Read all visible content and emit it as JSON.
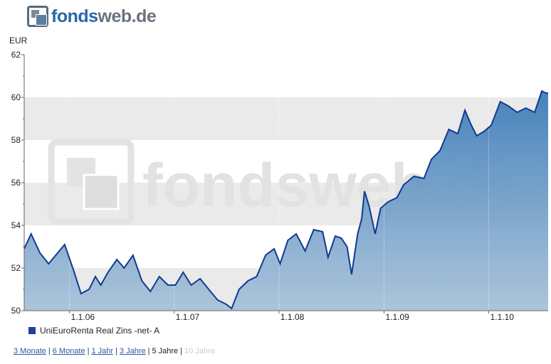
{
  "logo": {
    "part1": "fonds",
    "part2": "web.de"
  },
  "chart_data": {
    "type": "area",
    "unit_label": "EUR",
    "ylim": [
      50,
      62
    ],
    "yticks": [
      50,
      52,
      54,
      56,
      58,
      60,
      62
    ],
    "x_start": "2005-07-27",
    "x_end": "2010-07-27",
    "x_tick_labels": [
      "1.1.06",
      "1.1.07",
      "1.1.08",
      "1.1.09",
      "1.1.10"
    ],
    "x_tick_dates": [
      "2006-01-01",
      "2007-01-01",
      "2008-01-01",
      "2009-01-01",
      "2010-01-01"
    ],
    "watermark": "fondsweb.de",
    "series": [
      {
        "name": "UniEuroRenta Real Zins -net- A",
        "color": "#1a3a8f",
        "dates": [
          "2005-07-27",
          "2005-08-20",
          "2005-09-20",
          "2005-10-20",
          "2005-11-20",
          "2005-12-15",
          "2006-01-15",
          "2006-02-10",
          "2006-03-10",
          "2006-04-01",
          "2006-04-20",
          "2006-05-15",
          "2006-06-15",
          "2006-07-10",
          "2006-08-10",
          "2006-09-10",
          "2006-10-10",
          "2006-11-10",
          "2006-12-10",
          "2007-01-05",
          "2007-02-01",
          "2007-03-01",
          "2007-04-01",
          "2007-05-01",
          "2007-06-01",
          "2007-07-01",
          "2007-07-20",
          "2007-08-15",
          "2007-09-15",
          "2007-10-15",
          "2007-11-15",
          "2007-12-15",
          "2008-01-05",
          "2008-02-01",
          "2008-03-01",
          "2008-04-01",
          "2008-05-01",
          "2008-06-01",
          "2008-06-20",
          "2008-07-15",
          "2008-08-05",
          "2008-08-25",
          "2008-09-10",
          "2008-10-01",
          "2008-10-15",
          "2008-10-25",
          "2008-11-10",
          "2008-12-01",
          "2008-12-20",
          "2009-01-15",
          "2009-02-15",
          "2009-03-10",
          "2009-04-15",
          "2009-05-20",
          "2009-06-15",
          "2009-07-15",
          "2009-08-15",
          "2009-09-15",
          "2009-10-10",
          "2009-11-01",
          "2009-11-20",
          "2009-12-15",
          "2010-01-10",
          "2010-02-10",
          "2010-03-10",
          "2010-04-10",
          "2010-05-10",
          "2010-06-10",
          "2010-07-05",
          "2010-07-20",
          "2010-07-27"
        ],
        "values": [
          52.9,
          53.6,
          52.7,
          52.2,
          52.7,
          53.1,
          51.9,
          50.8,
          51.0,
          51.6,
          51.2,
          51.8,
          52.4,
          52.0,
          52.6,
          51.4,
          50.9,
          51.6,
          51.2,
          51.2,
          51.8,
          51.2,
          51.5,
          51.0,
          50.5,
          50.3,
          50.1,
          51.0,
          51.4,
          51.6,
          52.6,
          52.9,
          52.2,
          53.3,
          53.6,
          52.8,
          53.8,
          53.7,
          52.5,
          53.5,
          53.4,
          53.0,
          51.7,
          53.6,
          54.3,
          55.6,
          54.9,
          53.6,
          54.8,
          55.1,
          55.3,
          55.9,
          56.3,
          56.2,
          57.1,
          57.5,
          58.5,
          58.3,
          59.4,
          58.7,
          58.2,
          58.4,
          58.7,
          59.8,
          59.6,
          59.3,
          59.5,
          59.3,
          60.3,
          60.2,
          60.2
        ]
      }
    ]
  },
  "ranges": [
    {
      "label": "3 Monate",
      "state": "link"
    },
    {
      "label": "6 Monate",
      "state": "link"
    },
    {
      "label": "1 Jahr",
      "state": "link"
    },
    {
      "label": "3 Jahre",
      "state": "link"
    },
    {
      "label": "5 Jahre",
      "state": "active"
    },
    {
      "label": "10 Jahre",
      "state": "disabled"
    }
  ]
}
